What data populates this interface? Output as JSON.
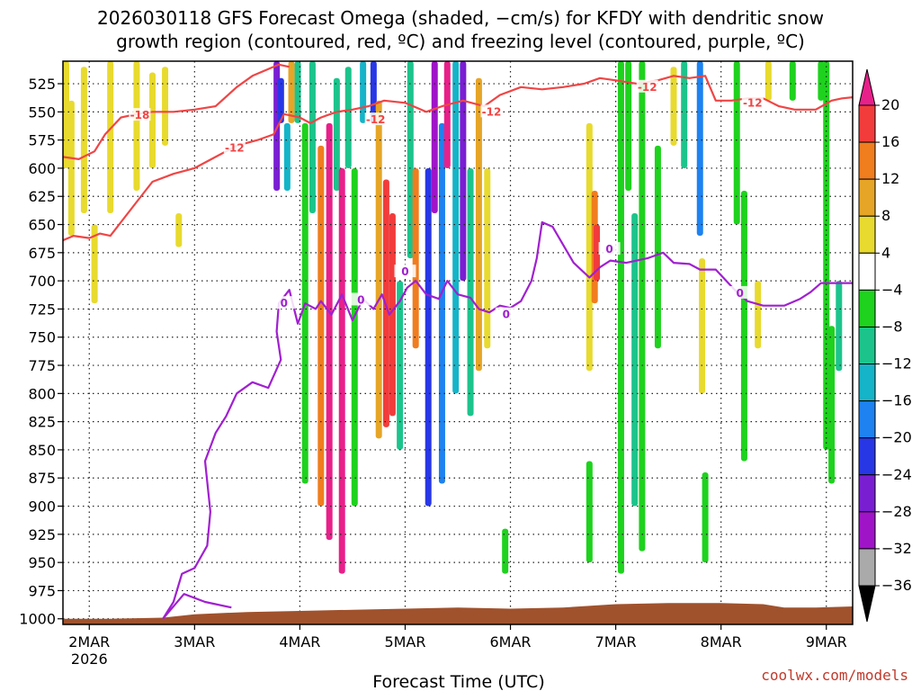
{
  "chart_data": {
    "type": "heatmap",
    "title_lines": [
      "2026030118 GFS Forecast Omega (shaded, −cm/s) for KFDY with dendritic snow",
      "growth region (contoured, red, ºC) and freezing level (contoured, purple, ºC)"
    ],
    "xlabel": "Forecast Time (UTC)",
    "credit": "coolwx.com/models",
    "x_ticks": [
      {
        "label": "2MAR",
        "sub": "2026",
        "day": 2.0
      },
      {
        "label": "3MAR",
        "sub": "",
        "day": 3.0
      },
      {
        "label": "4MAR",
        "sub": "",
        "day": 4.0
      },
      {
        "label": "5MAR",
        "sub": "",
        "day": 5.0
      },
      {
        "label": "6MAR",
        "sub": "",
        "day": 6.0
      },
      {
        "label": "7MAR",
        "sub": "",
        "day": 7.0
      },
      {
        "label": "8MAR",
        "sub": "",
        "day": 8.0
      },
      {
        "label": "9MAR",
        "sub": "",
        "day": 9.0
      }
    ],
    "xlim": [
      1.75,
      9.25
    ],
    "y_ticks": [
      525,
      550,
      575,
      600,
      625,
      650,
      675,
      700,
      725,
      750,
      775,
      800,
      825,
      850,
      875,
      900,
      925,
      950,
      975,
      1000
    ],
    "ylim": [
      505,
      1005
    ],
    "colorbar": {
      "levels": [
        "20",
        "16",
        "12",
        "8",
        "4",
        "−4",
        "−8",
        "−12",
        "−16",
        "−20",
        "−24",
        "−28",
        "−32",
        "−36"
      ],
      "colors": [
        "#e8208a",
        "#f23c3c",
        "#f07d1e",
        "#e6a526",
        "#e8da2e",
        "#ffffff",
        "#1ed21e",
        "#1cc48c",
        "#15b4c8",
        "#1e82f0",
        "#2837e6",
        "#7a1ed2",
        "#a014c8",
        "#aaaaaa",
        "#000000"
      ]
    },
    "omega_bands": [
      {
        "day": 1.78,
        "p0": 505,
        "p1": 600,
        "value": 6
      },
      {
        "day": 1.83,
        "p0": 540,
        "p1": 660,
        "value": 5
      },
      {
        "day": 1.95,
        "p0": 510,
        "p1": 640,
        "value": 5
      },
      {
        "day": 2.05,
        "p0": 650,
        "p1": 720,
        "value": 5
      },
      {
        "day": 2.2,
        "p0": 505,
        "p1": 640,
        "value": 5
      },
      {
        "day": 2.45,
        "p0": 505,
        "p1": 620,
        "value": 5
      },
      {
        "day": 2.6,
        "p0": 515,
        "p1": 600,
        "value": 5
      },
      {
        "day": 2.72,
        "p0": 510,
        "p1": 580,
        "value": 5
      },
      {
        "day": 2.85,
        "p0": 640,
        "p1": 670,
        "value": 5
      },
      {
        "day": 3.78,
        "p0": 505,
        "p1": 620,
        "value": -26
      },
      {
        "day": 3.82,
        "p0": 520,
        "p1": 560,
        "value": -20
      },
      {
        "day": 3.88,
        "p0": 560,
        "p1": 620,
        "value": -12
      },
      {
        "day": 3.92,
        "p0": 505,
        "p1": 560,
        "value": 10
      },
      {
        "day": 3.98,
        "p0": 505,
        "p1": 560,
        "value": -10
      },
      {
        "day": 4.05,
        "p0": 560,
        "p1": 880,
        "value": -6
      },
      {
        "day": 4.12,
        "p0": 505,
        "p1": 640,
        "value": -10
      },
      {
        "day": 4.2,
        "p0": 580,
        "p1": 900,
        "value": 14
      },
      {
        "day": 4.28,
        "p0": 560,
        "p1": 930,
        "value": 24
      },
      {
        "day": 4.35,
        "p0": 520,
        "p1": 620,
        "value": -10
      },
      {
        "day": 4.4,
        "p0": 600,
        "p1": 960,
        "value": 22
      },
      {
        "day": 4.46,
        "p0": 510,
        "p1": 600,
        "value": -9
      },
      {
        "day": 4.52,
        "p0": 600,
        "p1": 900,
        "value": -7
      },
      {
        "day": 4.6,
        "p0": 505,
        "p1": 560,
        "value": -14
      },
      {
        "day": 4.7,
        "p0": 505,
        "p1": 560,
        "value": -22
      },
      {
        "day": 4.75,
        "p0": 540,
        "p1": 840,
        "value": 8
      },
      {
        "day": 4.82,
        "p0": 610,
        "p1": 830,
        "value": 16
      },
      {
        "day": 4.88,
        "p0": 640,
        "p1": 820,
        "value": 19
      },
      {
        "day": 4.95,
        "p0": 700,
        "p1": 850,
        "value": -10
      },
      {
        "day": 5.05,
        "p0": 505,
        "p1": 680,
        "value": -9
      },
      {
        "day": 5.1,
        "p0": 600,
        "p1": 760,
        "value": 14
      },
      {
        "day": 5.22,
        "p0": 600,
        "p1": 900,
        "value": -20
      },
      {
        "day": 5.28,
        "p0": 505,
        "p1": 640,
        "value": -30
      },
      {
        "day": 5.35,
        "p0": 560,
        "p1": 880,
        "value": -17
      },
      {
        "day": 5.4,
        "p0": 505,
        "p1": 600,
        "value": 22
      },
      {
        "day": 5.48,
        "p0": 505,
        "p1": 800,
        "value": -15
      },
      {
        "day": 5.55,
        "p0": 505,
        "p1": 700,
        "value": -24
      },
      {
        "day": 5.62,
        "p0": 600,
        "p1": 820,
        "value": -10
      },
      {
        "day": 5.7,
        "p0": 520,
        "p1": 780,
        "value": 8
      },
      {
        "day": 5.78,
        "p0": 600,
        "p1": 760,
        "value": 6
      },
      {
        "day": 5.95,
        "p0": 920,
        "p1": 960,
        "value": -6
      },
      {
        "day": 6.75,
        "p0": 560,
        "p1": 780,
        "value": 6
      },
      {
        "day": 6.8,
        "p0": 620,
        "p1": 720,
        "value": 12
      },
      {
        "day": 6.82,
        "p0": 650,
        "p1": 700,
        "value": 18
      },
      {
        "day": 6.75,
        "p0": 860,
        "p1": 950,
        "value": -6
      },
      {
        "day": 7.05,
        "p0": 505,
        "p1": 960,
        "value": -6
      },
      {
        "day": 7.12,
        "p0": 505,
        "p1": 620,
        "value": -7
      },
      {
        "day": 7.18,
        "p0": 640,
        "p1": 900,
        "value": -10
      },
      {
        "day": 7.25,
        "p0": 505,
        "p1": 940,
        "value": -7
      },
      {
        "day": 7.4,
        "p0": 580,
        "p1": 760,
        "value": -5
      },
      {
        "day": 7.55,
        "p0": 510,
        "p1": 580,
        "value": 4
      },
      {
        "day": 7.65,
        "p0": 505,
        "p1": 600,
        "value": -9
      },
      {
        "day": 7.8,
        "p0": 505,
        "p1": 660,
        "value": -16
      },
      {
        "day": 7.82,
        "p0": 680,
        "p1": 800,
        "value": 7
      },
      {
        "day": 7.85,
        "p0": 870,
        "p1": 950,
        "value": -6
      },
      {
        "day": 8.15,
        "p0": 505,
        "p1": 650,
        "value": -6
      },
      {
        "day": 8.22,
        "p0": 620,
        "p1": 860,
        "value": -7
      },
      {
        "day": 8.35,
        "p0": 700,
        "p1": 760,
        "value": 6
      },
      {
        "day": 8.45,
        "p0": 505,
        "p1": 540,
        "value": 7
      },
      {
        "day": 8.68,
        "p0": 505,
        "p1": 540,
        "value": -6
      },
      {
        "day": 8.95,
        "p0": 505,
        "p1": 540,
        "value": -6
      },
      {
        "day": 9.0,
        "p0": 505,
        "p1": 850,
        "value": -6
      },
      {
        "day": 9.05,
        "p0": 740,
        "p1": 880,
        "value": -7
      },
      {
        "day": 9.12,
        "p0": 700,
        "p1": 780,
        "value": -8
      }
    ],
    "series": [
      {
        "name": "-18 C",
        "color": "#f04545",
        "points": [
          [
            1.75,
            590
          ],
          [
            1.9,
            592
          ],
          [
            2.05,
            585
          ],
          [
            2.15,
            570
          ],
          [
            2.3,
            555
          ],
          [
            2.45,
            552
          ],
          [
            2.6,
            550
          ],
          [
            2.8,
            550
          ],
          [
            3.0,
            548
          ],
          [
            3.2,
            545
          ],
          [
            3.4,
            528
          ],
          [
            3.55,
            518
          ],
          [
            3.7,
            512
          ],
          [
            3.8,
            508
          ],
          [
            3.9,
            510
          ]
        ]
      },
      {
        "name": "-12 C",
        "color": "#f04545",
        "points": [
          [
            1.75,
            664
          ],
          [
            1.85,
            660
          ],
          [
            2.0,
            662
          ],
          [
            2.1,
            658
          ],
          [
            2.2,
            660
          ],
          [
            2.3,
            648
          ],
          [
            2.45,
            630
          ],
          [
            2.6,
            612
          ],
          [
            2.8,
            605
          ],
          [
            3.0,
            600
          ],
          [
            3.2,
            590
          ],
          [
            3.4,
            580
          ],
          [
            3.6,
            575
          ],
          [
            3.75,
            570
          ],
          [
            3.85,
            552
          ],
          [
            4.0,
            555
          ],
          [
            4.1,
            560
          ],
          [
            4.2,
            555
          ],
          [
            4.35,
            550
          ],
          [
            4.5,
            548
          ],
          [
            4.65,
            545
          ],
          [
            4.8,
            540
          ],
          [
            5.0,
            542
          ],
          [
            5.2,
            550
          ],
          [
            5.35,
            545
          ],
          [
            5.55,
            540
          ],
          [
            5.75,
            545
          ],
          [
            5.9,
            535
          ],
          [
            6.1,
            528
          ],
          [
            6.3,
            530
          ],
          [
            6.5,
            528
          ],
          [
            6.7,
            525
          ],
          [
            6.85,
            520
          ],
          [
            7.0,
            522
          ],
          [
            7.2,
            525
          ],
          [
            7.4,
            522
          ],
          [
            7.55,
            518
          ],
          [
            7.7,
            520
          ],
          [
            7.85,
            518
          ],
          [
            7.95,
            540
          ],
          [
            8.1,
            540
          ],
          [
            8.25,
            538
          ],
          [
            8.4,
            538
          ],
          [
            8.55,
            545
          ],
          [
            8.7,
            548
          ],
          [
            8.9,
            548
          ],
          [
            9.05,
            540
          ],
          [
            9.15,
            538
          ],
          [
            9.25,
            537
          ]
        ]
      },
      {
        "name": "0 C",
        "color": "#a020d0",
        "points": [
          [
            2.7,
            1000
          ],
          [
            2.8,
            985
          ],
          [
            2.88,
            960
          ],
          [
            3.0,
            955
          ],
          [
            3.12,
            935
          ],
          [
            3.15,
            905
          ],
          [
            3.1,
            860
          ],
          [
            3.2,
            835
          ],
          [
            3.3,
            820
          ],
          [
            3.4,
            800
          ],
          [
            3.55,
            790
          ],
          [
            3.7,
            795
          ],
          [
            3.82,
            770
          ],
          [
            3.78,
            745
          ],
          [
            3.8,
            720
          ],
          [
            3.9,
            708
          ],
          [
            3.98,
            738
          ],
          [
            4.05,
            720
          ],
          [
            4.15,
            725
          ],
          [
            4.2,
            718
          ],
          [
            4.3,
            730
          ],
          [
            4.4,
            712
          ],
          [
            4.5,
            735
          ],
          [
            4.6,
            716
          ],
          [
            4.7,
            725
          ],
          [
            4.78,
            712
          ],
          [
            4.85,
            730
          ],
          [
            4.95,
            718
          ],
          [
            5.02,
            706
          ],
          [
            5.1,
            700
          ],
          [
            5.2,
            712
          ],
          [
            5.32,
            716
          ],
          [
            5.4,
            700
          ],
          [
            5.5,
            712
          ],
          [
            5.62,
            715
          ],
          [
            5.7,
            725
          ],
          [
            5.8,
            728
          ],
          [
            5.9,
            722
          ],
          [
            6.0,
            724
          ],
          [
            6.1,
            718
          ],
          [
            6.2,
            700
          ],
          [
            6.25,
            680
          ],
          [
            6.3,
            648
          ],
          [
            6.4,
            652
          ],
          [
            6.5,
            668
          ],
          [
            6.6,
            684
          ],
          [
            6.75,
            697
          ],
          [
            6.85,
            688
          ],
          [
            6.95,
            682
          ],
          [
            7.1,
            684
          ],
          [
            7.3,
            680
          ],
          [
            7.45,
            675
          ],
          [
            7.55,
            684
          ],
          [
            7.7,
            685
          ],
          [
            7.8,
            690
          ],
          [
            7.95,
            690
          ],
          [
            8.05,
            700
          ],
          [
            8.15,
            710
          ],
          [
            8.25,
            718
          ],
          [
            8.4,
            722
          ],
          [
            8.6,
            722
          ],
          [
            8.75,
            716
          ],
          [
            8.85,
            710
          ],
          [
            8.95,
            702
          ],
          [
            9.1,
            702
          ],
          [
            9.25,
            702
          ]
        ]
      },
      {
        "name": "0 C low",
        "color": "#a020d0",
        "points": [
          [
            2.7,
            1000
          ],
          [
            2.9,
            978
          ],
          [
            3.1,
            985
          ],
          [
            3.35,
            990
          ]
        ]
      }
    ],
    "contour_labels": [
      {
        "text": "-18",
        "day": 2.48,
        "p": 553,
        "color": "#f04545"
      },
      {
        "text": "-12",
        "day": 3.38,
        "p": 582,
        "color": "#f04545"
      },
      {
        "text": "-12",
        "day": 4.72,
        "p": 557,
        "color": "#f04545"
      },
      {
        "text": "-12",
        "day": 5.82,
        "p": 550,
        "color": "#f04545"
      },
      {
        "text": "-12",
        "day": 7.3,
        "p": 528,
        "color": "#f04545"
      },
      {
        "text": "-12",
        "day": 8.3,
        "p": 542,
        "color": "#f04545"
      },
      {
        "text": "0",
        "day": 3.85,
        "p": 720,
        "color": "#a020d0"
      },
      {
        "text": "0",
        "day": 4.58,
        "p": 717,
        "color": "#a020d0"
      },
      {
        "text": "0",
        "day": 5.0,
        "p": 692,
        "color": "#a020d0"
      },
      {
        "text": "0",
        "day": 5.96,
        "p": 730,
        "color": "#a020d0"
      },
      {
        "text": "0",
        "day": 6.94,
        "p": 672,
        "color": "#a020d0"
      },
      {
        "text": "0",
        "day": 8.18,
        "p": 711,
        "color": "#a020d0"
      }
    ],
    "terrain": {
      "color": "#a0522d",
      "points": [
        [
          1.75,
          1000
        ],
        [
          2.2,
          1000
        ],
        [
          2.7,
          999
        ],
        [
          3.0,
          996
        ],
        [
          3.5,
          994
        ],
        [
          4.0,
          993
        ],
        [
          4.5,
          992
        ],
        [
          5.0,
          991
        ],
        [
          5.5,
          990
        ],
        [
          6.0,
          991
        ],
        [
          6.5,
          990
        ],
        [
          7.0,
          987
        ],
        [
          7.5,
          986
        ],
        [
          8.0,
          986
        ],
        [
          8.4,
          987
        ],
        [
          8.6,
          990
        ],
        [
          8.9,
          990
        ],
        [
          9.25,
          989
        ]
      ]
    }
  }
}
